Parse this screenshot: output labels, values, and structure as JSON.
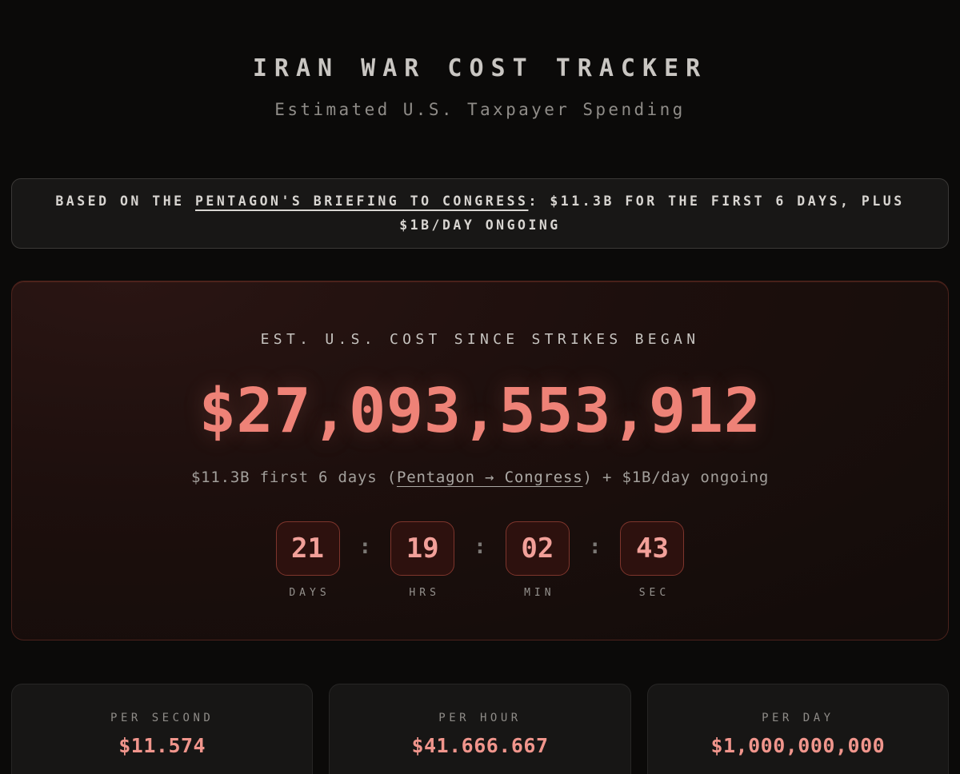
{
  "header": {
    "title": "IRAN WAR COST TRACKER",
    "subtitle": "Estimated U.S. Taxpayer Spending"
  },
  "banner": {
    "prefix": "BASED ON THE ",
    "link": "PENTAGON'S BRIEFING TO CONGRESS",
    "suffix": ": $11.3B FOR THE FIRST 6 DAYS, PLUS $1B/DAY ONGOING"
  },
  "main": {
    "heading": "EST. U.S. COST SINCE STRIKES BEGAN",
    "total": "$27,093,553,912",
    "formula": {
      "prefix": "$11.3B first 6 days (",
      "link": "Pentagon → Congress",
      "suffix": ") + $1B/day ongoing"
    },
    "timer": {
      "separator": ":",
      "units": [
        {
          "value": "21",
          "label": "DAYS"
        },
        {
          "value": "19",
          "label": "HRS"
        },
        {
          "value": "02",
          "label": "MIN"
        },
        {
          "value": "43",
          "label": "SEC"
        }
      ]
    }
  },
  "rates": [
    {
      "label": "PER SECOND",
      "value": "$11.574"
    },
    {
      "label": "PER HOUR",
      "value": "$41.666.667"
    },
    {
      "label": "PER DAY",
      "value": "$1,000,000,000"
    }
  ],
  "colors": {
    "page_background": "#0b0a09",
    "accent_salmon": "#ee8277",
    "timer_digit": "#f2a099",
    "timer_box_border": "#7e352c",
    "timer_box_background": "#2d110e",
    "card_border": "#4b221c",
    "banner_border": "#3b3937",
    "muted_text": "#8f8c88"
  }
}
